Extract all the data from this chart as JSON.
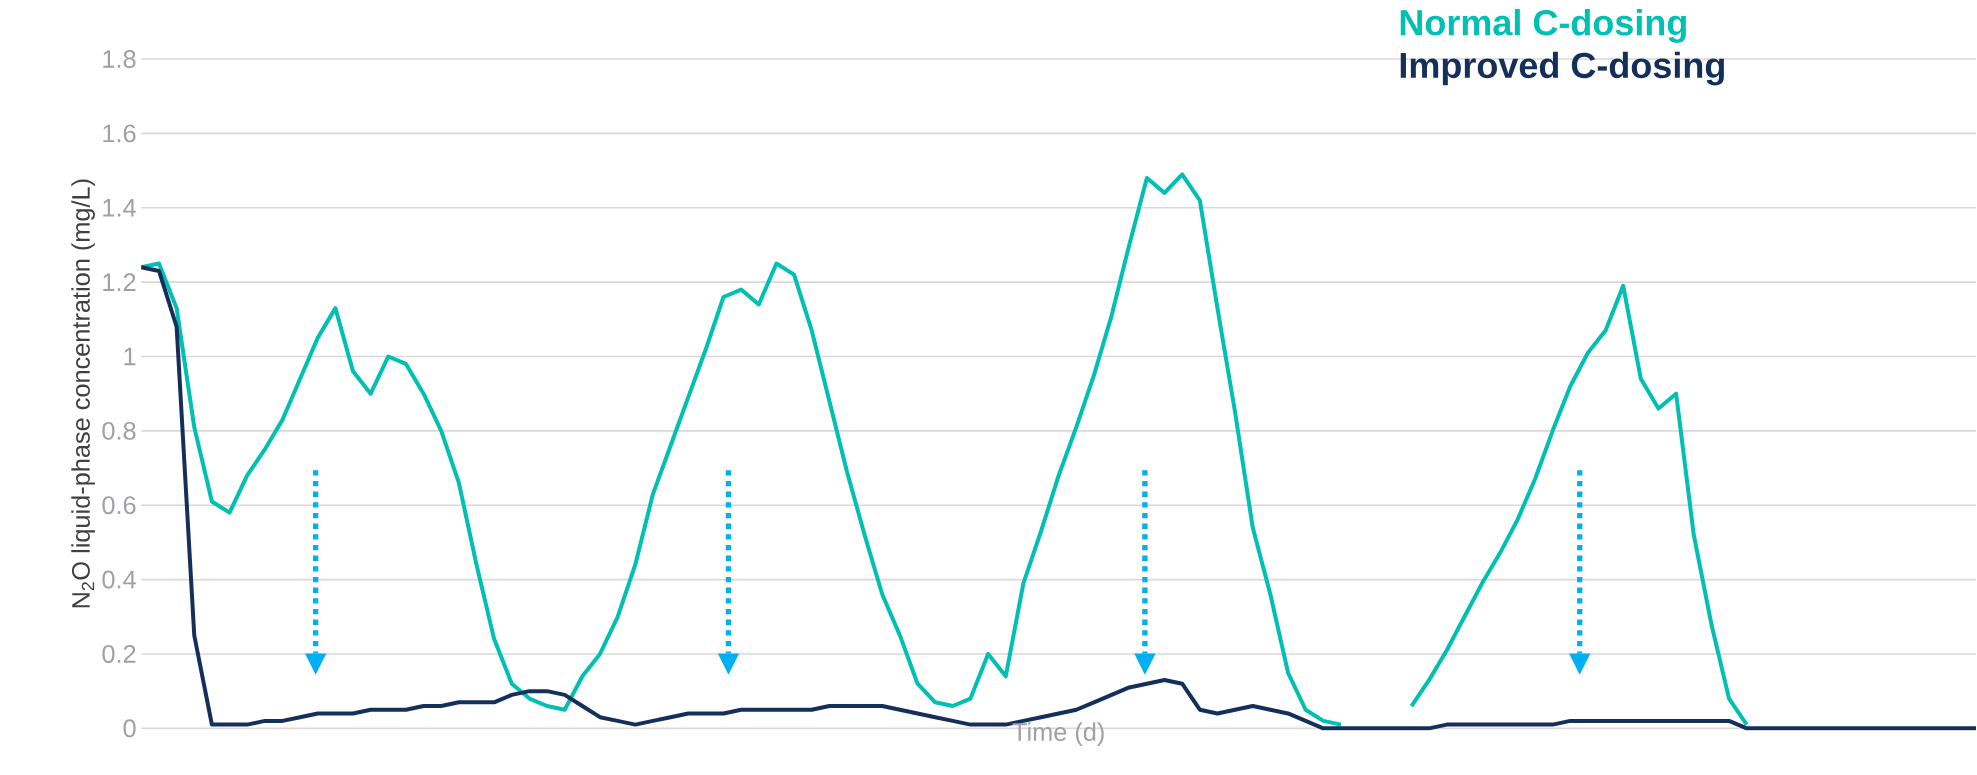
{
  "chart_data": {
    "type": "line",
    "xlabel": "Time (d)",
    "ylabel": "N$_{2}$O liquid-phase  concentration (mg/L)",
    "categories": [
      null,
      null,
      null,
      null,
      null,
      null,
      null,
      null,
      null,
      null,
      null,
      null,
      null,
      null,
      null,
      null,
      null,
      null,
      null,
      null,
      null,
      null,
      null,
      null,
      null,
      null,
      null,
      null,
      null,
      null,
      null,
      null,
      null,
      null,
      null,
      null,
      null,
      null,
      null,
      null,
      null,
      null,
      null,
      null,
      null,
      null,
      null,
      null,
      null,
      null,
      null,
      null,
      null,
      null,
      null,
      null,
      null,
      null,
      null,
      null,
      null,
      null,
      null,
      null,
      null,
      null,
      null,
      null,
      null,
      null,
      null,
      null,
      null,
      null,
      null,
      null,
      null,
      null,
      null,
      null,
      null,
      null,
      null,
      null,
      null,
      null,
      null,
      null,
      null,
      null,
      null,
      null,
      null,
      null,
      null,
      null,
      null,
      null,
      null,
      null,
      null,
      null,
      null,
      null,
      null
    ],
    "series": [
      {
        "name": "Normal C-dosing",
        "color": "#00bfb3",
        "values": [
          1.24,
          1.25,
          1.13,
          0.81,
          0.61,
          0.58,
          0.68,
          0.75,
          0.83,
          0.94,
          1.05,
          1.13,
          0.96,
          0.9,
          1.0,
          0.98,
          0.9,
          0.8,
          0.66,
          0.44,
          0.24,
          0.12,
          0.08,
          0.06,
          0.05,
          0.14,
          0.2,
          0.3,
          0.44,
          0.63,
          0.76,
          0.89,
          1.02,
          1.16,
          1.18,
          1.14,
          1.25,
          1.22,
          1.07,
          0.88,
          0.69,
          0.52,
          0.36,
          0.25,
          0.12,
          0.07,
          0.06,
          0.08,
          0.2,
          0.14,
          0.39,
          0.53,
          0.68,
          0.81,
          0.95,
          1.11,
          1.3,
          1.48,
          1.44,
          1.49,
          1.42,
          1.13,
          0.85,
          0.54,
          0.36,
          0.15,
          0.05,
          0.02,
          0.01,
          null,
          null,
          null,
          0.06,
          0.13,
          0.21,
          0.3,
          0.39,
          0.47,
          0.56,
          0.67,
          0.8,
          0.92,
          1.01,
          1.07,
          1.19,
          0.94,
          0.86,
          0.9,
          0.52,
          0.28,
          0.08,
          0.01,
          null,
          null,
          null,
          null,
          null,
          null,
          null,
          null,
          null,
          null,
          null,
          null,
          null
        ]
      },
      {
        "name": "Improved C-dosing",
        "color": "#14305a",
        "values": [
          1.24,
          1.23,
          1.08,
          0.25,
          0.01,
          0.01,
          0.01,
          0.02,
          0.02,
          0.03,
          0.04,
          0.04,
          0.04,
          0.05,
          0.05,
          0.05,
          0.06,
          0.06,
          0.07,
          0.07,
          0.07,
          0.09,
          0.1,
          0.1,
          0.09,
          0.06,
          0.03,
          0.02,
          0.01,
          0.02,
          0.03,
          0.04,
          0.04,
          0.04,
          0.05,
          0.05,
          0.05,
          0.05,
          0.05,
          0.06,
          0.06,
          0.06,
          0.06,
          0.05,
          0.04,
          0.03,
          0.02,
          0.01,
          0.01,
          0.01,
          0.02,
          0.03,
          0.04,
          0.05,
          0.07,
          0.09,
          0.11,
          0.12,
          0.13,
          0.12,
          0.05,
          0.04,
          0.05,
          0.06,
          0.05,
          0.04,
          0.02,
          0,
          0,
          0,
          0,
          0,
          0,
          0,
          0.01,
          0.01,
          0.01,
          0.01,
          0.01,
          0.01,
          0.01,
          0.02,
          0.02,
          0.02,
          0.02,
          0.02,
          0.02,
          0.02,
          0.02,
          0.02,
          0.02,
          0,
          0,
          0,
          0,
          0,
          0,
          0,
          0,
          0,
          0,
          0,
          0,
          0,
          0
        ]
      }
    ],
    "ylim": [
      0,
      1.8
    ],
    "yticks": [
      0,
      0.2,
      0.4,
      0.6,
      0.8,
      1,
      1.2,
      1.4,
      1.6,
      1.8
    ],
    "grid": "y",
    "legend": "top right",
    "line_style": "solid",
    "marker": "none"
  }
}
